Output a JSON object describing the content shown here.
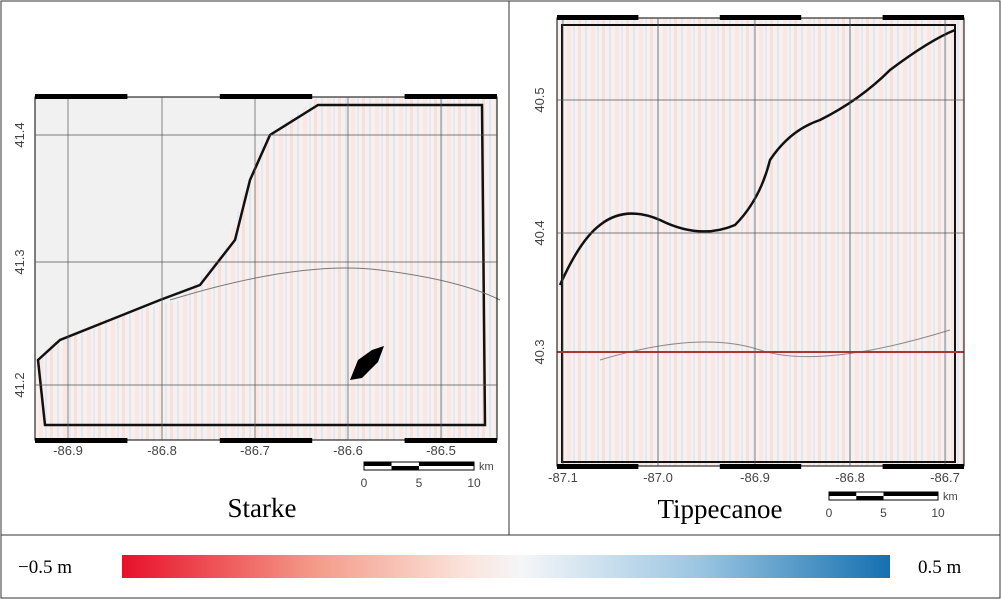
{
  "panels": [
    {
      "title": "Starke",
      "xticks": [
        "-86.9",
        "-86.8",
        "-86.7",
        "-86.6",
        "-86.5"
      ],
      "yticks": [
        "41.4",
        "41.3",
        "41.2"
      ],
      "scale_labels": [
        "0",
        "5",
        "10"
      ],
      "scale_unit": "km"
    },
    {
      "title": "Tippecanoe",
      "xticks": [
        "-87.1",
        "-87.0",
        "-86.9",
        "-86.8",
        "-86.7"
      ],
      "yticks": [
        "40.5",
        "40.4",
        "40.3"
      ],
      "scale_labels": [
        "0",
        "5",
        "10"
      ],
      "scale_unit": "km"
    }
  ],
  "colorbar": {
    "min_label": "−0.5 m",
    "max_label": "0.5 m"
  }
}
